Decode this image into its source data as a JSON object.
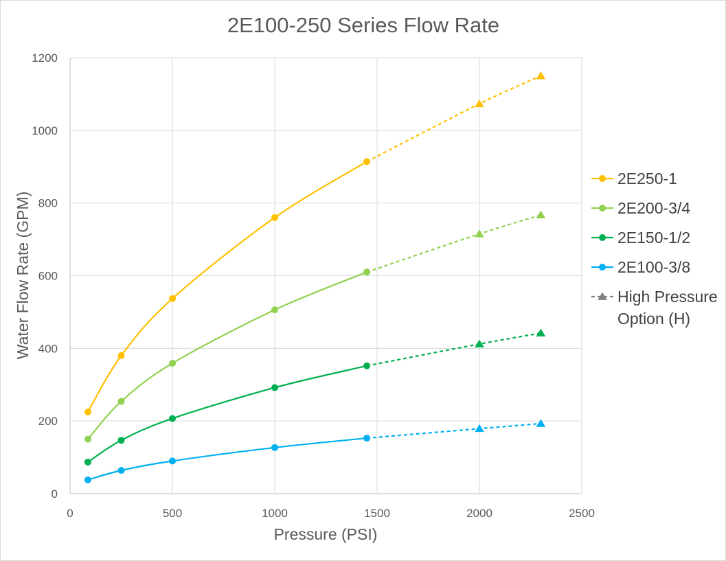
{
  "chart_data": {
    "type": "line",
    "title": "2E100-250 Series Flow Rate",
    "xlabel": "Pressure (PSI)",
    "ylabel": "Water Flow Rate (GPM)",
    "xlim": [
      0,
      2500
    ],
    "ylim": [
      0,
      1200
    ],
    "x_ticks": [
      0,
      500,
      1000,
      1500,
      2000,
      2500
    ],
    "y_ticks": [
      0,
      200,
      400,
      600,
      800,
      1000,
      1200
    ],
    "grid": true,
    "legend_position": "right",
    "series": [
      {
        "name": "2E250-1",
        "color": "#FFC000",
        "points": [
          [
            87,
            225
          ],
          [
            250,
            380
          ],
          [
            500,
            537
          ],
          [
            1000,
            760
          ],
          [
            1450,
            914
          ]
        ],
        "high_pressure_points": [
          [
            2000,
            1073
          ],
          [
            2300,
            1150
          ]
        ]
      },
      {
        "name": "2E200-3/4",
        "color": "#92D050",
        "points": [
          [
            87,
            150
          ],
          [
            250,
            254
          ],
          [
            500,
            359
          ],
          [
            1000,
            506
          ],
          [
            1450,
            610
          ]
        ],
        "high_pressure_points": [
          [
            2000,
            715
          ],
          [
            2300,
            767
          ]
        ]
      },
      {
        "name": "2E150-1/2",
        "color": "#00B050",
        "points": [
          [
            87,
            87
          ],
          [
            250,
            147
          ],
          [
            500,
            207
          ],
          [
            1000,
            292
          ],
          [
            1450,
            352
          ]
        ],
        "high_pressure_points": [
          [
            2000,
            412
          ],
          [
            2300,
            442
          ]
        ]
      },
      {
        "name": "2E100-3/8",
        "color": "#00B0F0",
        "points": [
          [
            87,
            38
          ],
          [
            250,
            64
          ],
          [
            500,
            90
          ],
          [
            1000,
            127
          ],
          [
            1450,
            153
          ]
        ],
        "high_pressure_points": [
          [
            2000,
            179
          ],
          [
            2300,
            193
          ]
        ]
      }
    ],
    "legend_extra": {
      "label_line1": "High Pressure",
      "label_line2": "Option (H)",
      "color": "#808080"
    }
  }
}
